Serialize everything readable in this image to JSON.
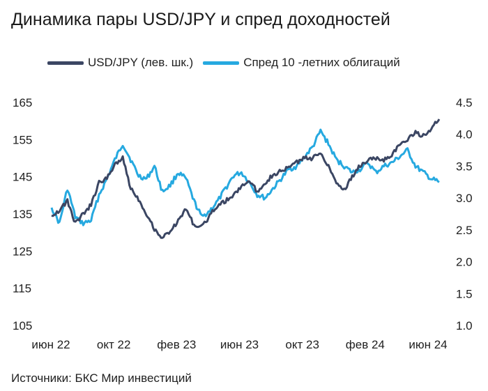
{
  "title": "Динамика пары USD/JPY и спред доходностей",
  "source": "Источники: БКС Мир инвестиций",
  "colors": {
    "usdjpy": "#3b4663",
    "spread": "#26a9e0"
  },
  "chart_data": {
    "type": "line",
    "title": "Динамика пары USD/JPY и спред доходностей",
    "legend_position": "top",
    "grid": false,
    "x_ticks": [
      "июн 22",
      "окт 22",
      "фев 23",
      "июн 23",
      "окт 23",
      "фев 24",
      "июн 24"
    ],
    "y_left": {
      "ylim": [
        105,
        165
      ],
      "ticks": [
        "165",
        "155",
        "145",
        "135",
        "125",
        "115",
        "105"
      ]
    },
    "y_right": {
      "ylim": [
        1.0,
        4.5
      ],
      "ticks": [
        "4.5",
        "4.0",
        "3.5",
        "3.0",
        "2.5",
        "2.0",
        "1.5",
        "1.0"
      ]
    },
    "series": [
      {
        "name": "USD/JPY (лев. шк.)",
        "axis": "left",
        "x": [
          "2022-06",
          "2022-06",
          "2022-07",
          "2022-07",
          "2022-08",
          "2022-08",
          "2022-09",
          "2022-09",
          "2022-10",
          "2022-10",
          "2022-11",
          "2022-11",
          "2022-12",
          "2022-12",
          "2023-01",
          "2023-01",
          "2023-02",
          "2023-02",
          "2023-03",
          "2023-03",
          "2023-04",
          "2023-04",
          "2023-05",
          "2023-05",
          "2023-06",
          "2023-06",
          "2023-07",
          "2023-07",
          "2023-08",
          "2023-08",
          "2023-09",
          "2023-09",
          "2023-10",
          "2023-10",
          "2023-11",
          "2023-11",
          "2023-12",
          "2023-12",
          "2024-01",
          "2024-01",
          "2024-02",
          "2024-02",
          "2024-03",
          "2024-03",
          "2024-04",
          "2024-04",
          "2024-05",
          "2024-05",
          "2024-06",
          "2024-06"
        ],
        "values": [
          134.6,
          136.0,
          138.5,
          132.5,
          135.0,
          137.5,
          143.5,
          144.5,
          148.5,
          150.0,
          142.0,
          139.0,
          135.0,
          131.0,
          128.5,
          130.5,
          133.0,
          136.5,
          132.0,
          131.5,
          134.5,
          137.5,
          138.5,
          140.0,
          142.5,
          144.0,
          141.0,
          143.5,
          145.5,
          146.5,
          147.5,
          149.0,
          150.0,
          150.0,
          151.5,
          148.0,
          143.5,
          141.5,
          145.0,
          148.0,
          149.5,
          150.0,
          149.5,
          151.0,
          153.5,
          155.0,
          157.0,
          156.0,
          158.0,
          160.5
        ]
      },
      {
        "name": "Спред 10 -летних облигаций",
        "axis": "right",
        "x": [
          "2022-06",
          "2022-06",
          "2022-07",
          "2022-07",
          "2022-08",
          "2022-08",
          "2022-09",
          "2022-09",
          "2022-10",
          "2022-10",
          "2022-11",
          "2022-11",
          "2022-12",
          "2022-12",
          "2023-01",
          "2023-01",
          "2023-02",
          "2023-02",
          "2023-03",
          "2023-03",
          "2023-04",
          "2023-04",
          "2023-05",
          "2023-05",
          "2023-06",
          "2023-06",
          "2023-07",
          "2023-07",
          "2023-08",
          "2023-08",
          "2023-09",
          "2023-09",
          "2023-10",
          "2023-10",
          "2023-11",
          "2023-11",
          "2023-12",
          "2023-12",
          "2024-01",
          "2024-01",
          "2024-02",
          "2024-02",
          "2024-03",
          "2024-03",
          "2024-04",
          "2024-04",
          "2024-05",
          "2024-05",
          "2024-06",
          "2024-06"
        ],
        "values": [
          2.85,
          2.6,
          3.15,
          2.7,
          2.6,
          2.65,
          3.05,
          3.3,
          3.6,
          3.85,
          3.6,
          3.35,
          3.3,
          3.5,
          3.1,
          3.2,
          3.4,
          3.3,
          2.95,
          2.7,
          2.8,
          2.95,
          3.15,
          3.35,
          3.4,
          3.25,
          3.05,
          3.0,
          3.15,
          3.3,
          3.45,
          3.5,
          3.65,
          3.8,
          4.05,
          3.85,
          3.6,
          3.5,
          3.4,
          3.45,
          3.55,
          3.4,
          3.5,
          3.55,
          3.65,
          3.75,
          3.5,
          3.4,
          3.3,
          3.25
        ]
      }
    ]
  }
}
